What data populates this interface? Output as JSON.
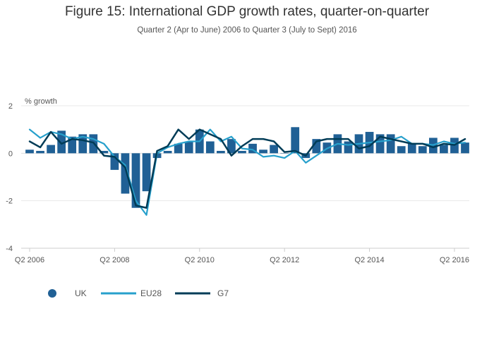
{
  "chart_data": {
    "type": "bar",
    "title": "Figure 15: International GDP growth rates, quarter-on-quarter",
    "subtitle": "Quarter 2 (Apr to June) 2006 to Quarter 3 (July to Sept) 2016",
    "ylabel": "% growth",
    "xlabel": "",
    "ylim": [
      -4,
      2
    ],
    "yticks": [
      "-4",
      "-2",
      "0",
      "2"
    ],
    "xtick_labels": [
      "Q2 2006",
      "Q2 2008",
      "Q2 2010",
      "Q2 2012",
      "Q2 2014",
      "Q2 2016"
    ],
    "categories": [
      "Q2 2006",
      "Q3 2006",
      "Q4 2006",
      "Q1 2007",
      "Q2 2007",
      "Q3 2007",
      "Q4 2007",
      "Q1 2008",
      "Q2 2008",
      "Q3 2008",
      "Q4 2008",
      "Q1 2009",
      "Q2 2009",
      "Q3 2009",
      "Q4 2009",
      "Q1 2010",
      "Q2 2010",
      "Q3 2010",
      "Q4 2010",
      "Q1 2011",
      "Q2 2011",
      "Q3 2011",
      "Q4 2011",
      "Q1 2012",
      "Q2 2012",
      "Q3 2012",
      "Q4 2012",
      "Q1 2013",
      "Q2 2013",
      "Q3 2013",
      "Q4 2013",
      "Q1 2014",
      "Q2 2014",
      "Q3 2014",
      "Q4 2014",
      "Q1 2015",
      "Q2 2015",
      "Q3 2015",
      "Q4 2015",
      "Q1 2016",
      "Q2 2016",
      "Q3 2016"
    ],
    "series": [
      {
        "name": "UK",
        "kind": "bar",
        "color": "#206095",
        "values": [
          0.15,
          0.1,
          0.35,
          0.95,
          0.7,
          0.8,
          0.8,
          0.1,
          -0.7,
          -1.7,
          -2.3,
          -1.6,
          -0.2,
          0.1,
          0.4,
          0.5,
          1.0,
          0.5,
          0.1,
          0.6,
          0.1,
          0.4,
          0.15,
          0.35,
          0.0,
          1.1,
          -0.2,
          0.6,
          0.45,
          0.8,
          0.5,
          0.8,
          0.9,
          0.8,
          0.8,
          0.3,
          0.4,
          0.3,
          0.65,
          0.35,
          0.65,
          0.45
        ]
      },
      {
        "name": "EU28",
        "kind": "line",
        "color": "#27a0cc",
        "values": [
          1.0,
          0.65,
          0.9,
          0.8,
          0.6,
          0.7,
          0.6,
          0.4,
          -0.15,
          -0.5,
          -2.0,
          -2.6,
          0.0,
          0.25,
          0.4,
          0.5,
          0.5,
          1.0,
          0.5,
          0.7,
          0.2,
          0.15,
          -0.15,
          -0.1,
          -0.2,
          0.1,
          -0.4,
          -0.1,
          0.2,
          0.4,
          0.35,
          0.4,
          0.45,
          0.5,
          0.55,
          0.7,
          0.4,
          0.4,
          0.35,
          0.5,
          0.4,
          0.45
        ]
      },
      {
        "name": "G7",
        "kind": "line",
        "color": "#003c57",
        "values": [
          0.5,
          0.25,
          0.9,
          0.4,
          0.6,
          0.55,
          0.45,
          -0.1,
          -0.15,
          -0.6,
          -2.2,
          -2.3,
          0.1,
          0.3,
          1.0,
          0.6,
          1.0,
          0.8,
          0.6,
          -0.1,
          0.3,
          0.6,
          0.6,
          0.5,
          0.05,
          0.1,
          -0.1,
          0.5,
          0.6,
          0.6,
          0.6,
          0.2,
          0.3,
          0.7,
          0.6,
          0.5,
          0.4,
          0.4,
          0.25,
          0.4,
          0.35,
          0.6
        ]
      }
    ],
    "grid": true,
    "legend_position": "bottom-left"
  }
}
